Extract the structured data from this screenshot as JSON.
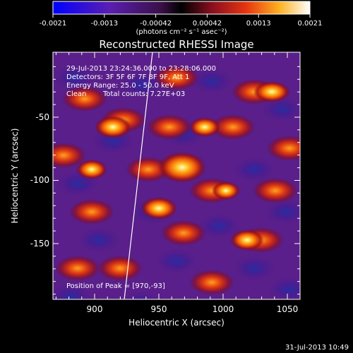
{
  "colorbar": {
    "ticks": [
      "-0.0021",
      "-0.0013",
      "-0.00042",
      "0.00042",
      "0.0013",
      "0.0021"
    ],
    "units": "(photons cm⁻² s⁻¹ asec⁻²)"
  },
  "title": "Reconstructed RHESSI Image",
  "info": {
    "line1": "29-Jul-2013 23:24:36.000 to 23:28:06.000",
    "line2": "Detectors: 3F 5F 6F 7F 8F 9F, Att 1",
    "line3": "Energy Range: 25.0 - 50.0 keV",
    "line4_label": "Clean",
    "line4_counts": "Total counts: 7.27E+03"
  },
  "peak_label": "Position of Peak = [970,-93]",
  "axes": {
    "xlabel": "Heliocentric X (arcsec)",
    "ylabel": "Heliocentric Y (arcsec)",
    "xticks": [
      "900",
      "950",
      "1000",
      "1050"
    ],
    "yticks": [
      "-50",
      "-100",
      "-150"
    ]
  },
  "timestamp": "31-Jul-2013 10:49"
}
